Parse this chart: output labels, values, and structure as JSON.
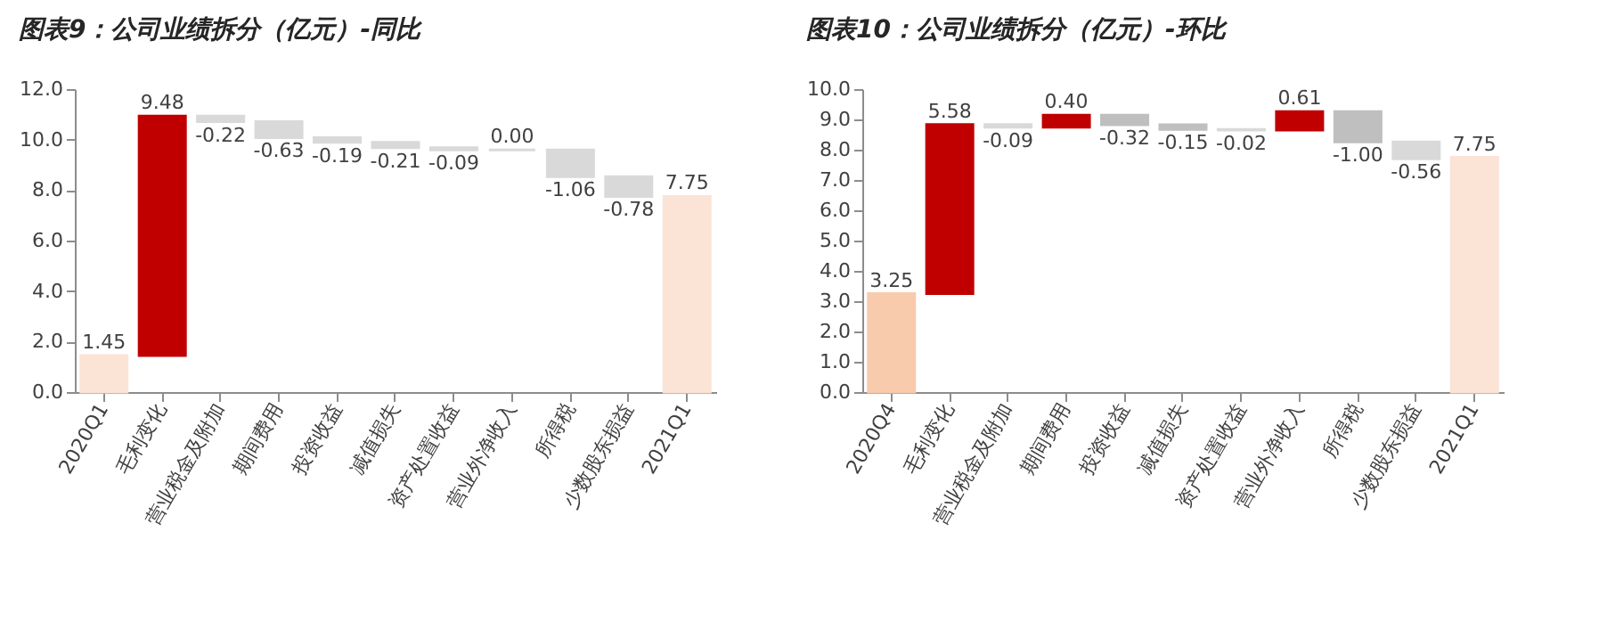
{
  "chart_data": [
    {
      "type": "bar",
      "title": "图表9：公司业绩拆分（亿元）-同比",
      "categories": [
        "2020Q1",
        "毛利变化",
        "营业税金及附加",
        "期间费用",
        "投资收益",
        "减值损失",
        "资产处置收益",
        "营业外净收入",
        "所得税",
        "少数股东损益",
        "2021Q1"
      ],
      "values": [
        1.45,
        9.48,
        -0.22,
        -0.63,
        -0.19,
        -0.21,
        -0.09,
        0.0,
        -1.06,
        -0.78,
        7.75
      ],
      "base": [
        0,
        1.45,
        10.93,
        10.71,
        10.08,
        9.89,
        9.68,
        9.59,
        9.59,
        8.53,
        0
      ],
      "colors": [
        "#fbe3d6",
        "#c00000",
        "#d9d9d9",
        "#d9d9d9",
        "#d9d9d9",
        "#d9d9d9",
        "#d9d9d9",
        "#d9d9d9",
        "#d9d9d9",
        "#d9d9d9",
        "#fbe3d6"
      ],
      "ylim": [
        0,
        12
      ],
      "yticks": [
        {
          "value": 0,
          "label": "0.0"
        },
        {
          "value": 2,
          "label": "2.0"
        },
        {
          "value": 4,
          "label": "4.0"
        },
        {
          "value": 6,
          "label": "6.0"
        },
        {
          "value": 8,
          "label": "8.0"
        },
        {
          "value": 10,
          "label": "10.0"
        },
        {
          "value": 12,
          "label": "12.0"
        }
      ],
      "value_labels": [
        "1.45",
        "9.48",
        "-0.22",
        "-0.63",
        "-0.19",
        "-0.21",
        "-0.09",
        "0.00",
        "-1.06",
        "-0.78",
        "7.75"
      ],
      "grid": false
    },
    {
      "type": "bar",
      "title": "图表10：公司业绩拆分（亿元）-环比",
      "categories": [
        "2020Q4",
        "毛利变化",
        "营业税金及附加",
        "期间费用",
        "投资收益",
        "减值损失",
        "资产处置收益",
        "营业外净收入",
        "所得税",
        "少数股东损益",
        "2021Q1"
      ],
      "values": [
        3.25,
        5.58,
        -0.09,
        0.4,
        -0.32,
        -0.15,
        -0.02,
        0.61,
        -1.0,
        -0.56,
        7.75
      ],
      "base": [
        0,
        3.25,
        8.83,
        8.74,
        9.14,
        8.82,
        8.67,
        8.65,
        9.26,
        8.26,
        0
      ],
      "colors": [
        "#f8cbad",
        "#c00000",
        "#d9d9d9",
        "#c00000",
        "#bfbfbf",
        "#bfbfbf",
        "#d9d9d9",
        "#c00000",
        "#bfbfbf",
        "#d9d9d9",
        "#fbe3d6"
      ],
      "ylim": [
        0,
        10
      ],
      "yticks": [
        {
          "value": 0,
          "label": "0.0"
        },
        {
          "value": 1,
          "label": "1.0"
        },
        {
          "value": 2,
          "label": "2.0"
        },
        {
          "value": 3,
          "label": "3.0"
        },
        {
          "value": 4,
          "label": "4.0"
        },
        {
          "value": 5,
          "label": "5.0"
        },
        {
          "value": 6,
          "label": "6.0"
        },
        {
          "value": 7,
          "label": "7.0"
        },
        {
          "value": 8,
          "label": "8.0"
        },
        {
          "value": 9,
          "label": "9.0"
        },
        {
          "value": 10,
          "label": "10.0"
        }
      ],
      "value_labels": [
        "3.25",
        "5.58",
        "-0.09",
        "0.40",
        "-0.32",
        "-0.15",
        "-0.02",
        "0.61",
        "-1.00",
        "-0.56",
        "7.75"
      ],
      "grid": false
    }
  ]
}
